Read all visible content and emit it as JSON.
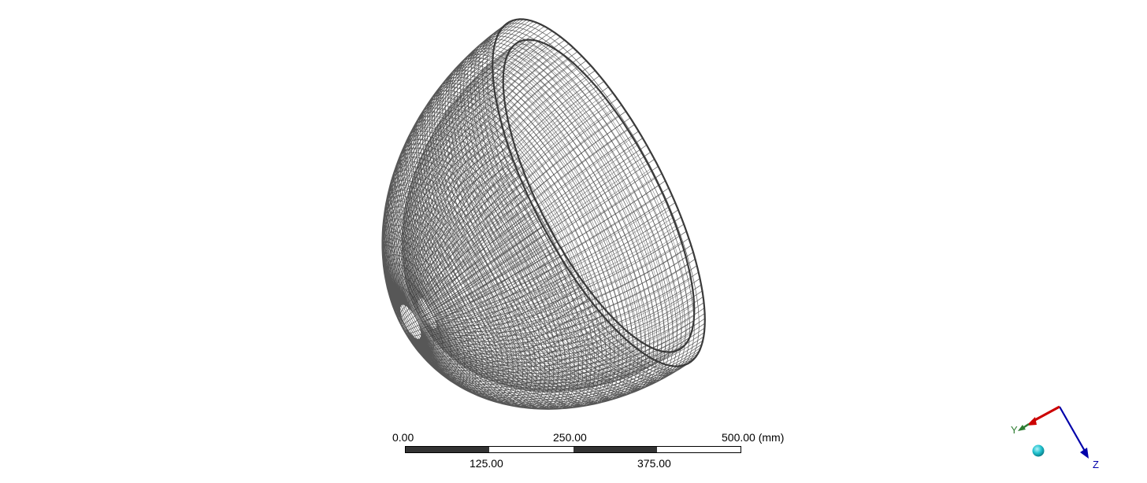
{
  "scale_bar": {
    "top_labels": [
      "0.00",
      "250.00",
      "500.00 (mm)"
    ],
    "bottom_labels": [
      "125.00",
      "375.00"
    ],
    "segments": [
      "dark",
      "light",
      "dark",
      "light"
    ]
  },
  "triad": {
    "y_label": "Y",
    "z_label": "Z",
    "x_color": "#cc0000",
    "y_color": "#2e7d32",
    "z_color": "#0000aa",
    "origin_color": "#22c3d0"
  },
  "model": {
    "mesh_color": "#3a3a3a",
    "icon": "wireframe-mesh-shell"
  }
}
